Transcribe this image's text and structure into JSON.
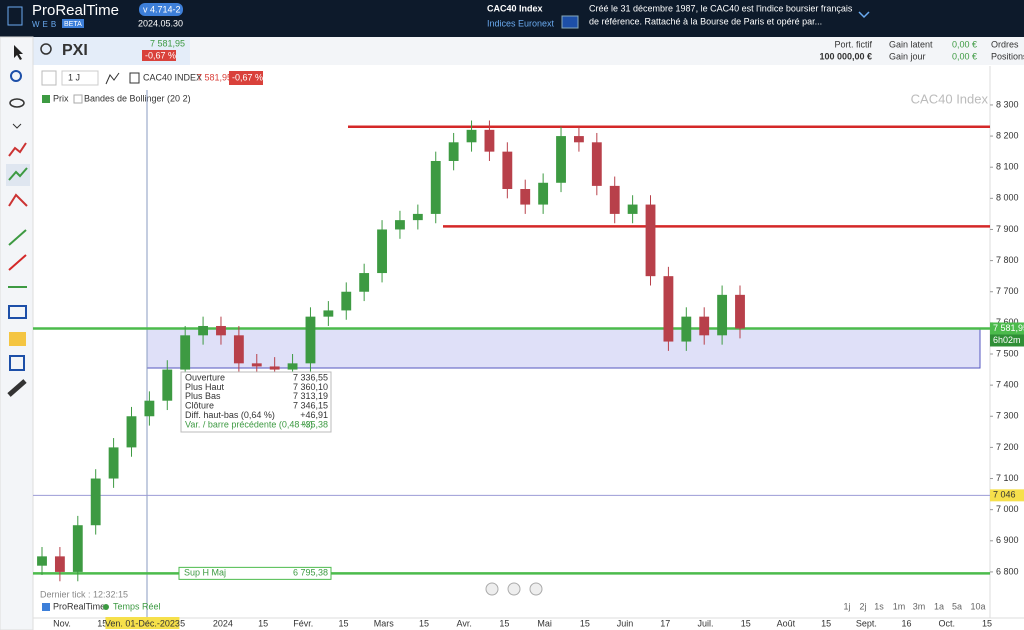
{
  "header": {
    "brand": "ProRealTime",
    "edition": "WEB",
    "beta": "BETA",
    "version": "v 4.714-2",
    "date": "2024.05.30",
    "instrument": "CAC40 Index",
    "market": "Indices Euronext",
    "description": [
      "Créé le 31 décembre 1987, le CAC40 est l'indice boursier français",
      "de référence. Rattaché à la Bourse de Paris et opéré par..."
    ]
  },
  "symbol_bar": {
    "symbol": "PXI",
    "price": "7 581,95",
    "change": "-0,67 %",
    "account": [
      {
        "label": "Port. fictif",
        "value": "100 000,00 €"
      }
    ],
    "gains": [
      {
        "label": "Gain latent",
        "value": "0,00 €"
      },
      {
        "label": "Gain jour",
        "value": "0,00 €"
      }
    ],
    "links": [
      "Ordres",
      "Positions"
    ]
  },
  "chart_header": {
    "period": "1 J",
    "name": "CAC40 INDEX",
    "price": "7 581,95",
    "change": "-0,67 %",
    "legend": [
      "Prix",
      "Bandes de Bollinger (20 2)"
    ]
  },
  "chart_data": {
    "type": "candlestick",
    "watermark": "CAC40 Index",
    "open": [
      6820,
      6850,
      6800,
      6950,
      7100,
      7200,
      7300,
      7350,
      7450,
      7560,
      7590,
      7560,
      7470,
      7460,
      7450,
      7470,
      7620,
      7640,
      7700,
      7760,
      7900,
      7930,
      7950,
      8120,
      8180,
      8220,
      8150,
      8030,
      7980,
      8050,
      8200,
      8180,
      8040,
      7950,
      7980,
      7750,
      7540,
      7620,
      7560,
      7690
    ],
    "high": [
      6880,
      6880,
      6980,
      7130,
      7230,
      7330,
      7380,
      7480,
      7590,
      7620,
      7620,
      7590,
      7500,
      7490,
      7500,
      7650,
      7670,
      7730,
      7790,
      7930,
      7960,
      7980,
      8150,
      8210,
      8250,
      8250,
      8180,
      8060,
      8080,
      8230,
      8230,
      8210,
      8070,
      8010,
      8010,
      7780,
      7650,
      7650,
      7720,
      7720
    ],
    "low": [
      6790,
      6770,
      6770,
      6920,
      7070,
      7170,
      7270,
      7320,
      7420,
      7530,
      7530,
      7440,
      7430,
      7420,
      7420,
      7440,
      7590,
      7610,
      7670,
      7730,
      7870,
      7900,
      7920,
      8090,
      8150,
      8120,
      8000,
      7950,
      7950,
      8020,
      8150,
      8010,
      7920,
      7920,
      7720,
      7510,
      7510,
      7530,
      7530,
      7550
    ],
    "close": [
      6850,
      6800,
      6950,
      7100,
      7200,
      7300,
      7350,
      7450,
      7560,
      7590,
      7560,
      7470,
      7460,
      7450,
      7470,
      7620,
      7640,
      7700,
      7760,
      7900,
      7930,
      7950,
      8120,
      8180,
      8220,
      8150,
      8030,
      7980,
      8050,
      8200,
      8180,
      8040,
      7950,
      7980,
      7750,
      7540,
      7620,
      7560,
      7690,
      7581.95
    ],
    "up_color": "#3d9a42",
    "down_color": "#b8404a",
    "ylim": [
      6652,
      8348
    ],
    "yticks": [
      {
        "value": 6800,
        "label": "6 800"
      },
      {
        "value": 6900,
        "label": "6 900"
      },
      {
        "value": 7000,
        "label": "7 000"
      },
      {
        "value": 7100,
        "label": "7 100"
      },
      {
        "value": 7200,
        "label": "7 200"
      },
      {
        "value": 7300,
        "label": "7 300"
      },
      {
        "value": 7400,
        "label": "7 400"
      },
      {
        "value": 7500,
        "label": "7 500"
      },
      {
        "value": 7600,
        "label": "7 600"
      },
      {
        "value": 7700,
        "label": "7 700"
      },
      {
        "value": 7800,
        "label": "7 800"
      },
      {
        "value": 7900,
        "label": "7 900"
      },
      {
        "value": 8000,
        "label": "8 000"
      },
      {
        "value": 8100,
        "label": "8 100"
      },
      {
        "value": 8200,
        "label": "8 200"
      },
      {
        "value": 8300,
        "label": "8 300"
      }
    ],
    "xtick_labels": [
      "Nov.",
      "15",
      "Ven. 01-Déc.-2023",
      "5",
      "2024",
      "15",
      "Févr.",
      "15",
      "Mars",
      "15",
      "Avr.",
      "15",
      "Mai",
      "15",
      "Juin",
      "17",
      "Juil.",
      "15",
      "Août",
      "15",
      "Sept.",
      "16",
      "Oct.",
      "15"
    ],
    "levels": [
      {
        "value": 8230,
        "color": "#d42828"
      },
      {
        "value": 7910,
        "color": "#d42828"
      },
      {
        "value": 7581.95,
        "color": "#4cbb4c",
        "label": "7 581,95",
        "timer": "6h02m"
      },
      {
        "value": 6795.38,
        "color": "#4cbb4c",
        "name": "Sup H Maj",
        "label": "6 795,38"
      },
      {
        "value": 7046,
        "color": "#9b9bd6",
        "label": "7 046"
      }
    ],
    "zone": {
      "top": 7581.95,
      "bottom": 7455,
      "color": "#d9dbf7"
    },
    "tooltip": [
      [
        "Ouverture",
        "7 336,55"
      ],
      [
        "Plus Haut",
        "7 360,10"
      ],
      [
        "Plus Bas",
        "7 313,19"
      ],
      [
        "Clôture",
        "7 346,15"
      ],
      [
        "Diff. haut-bas (0,64 %)",
        "+46,91"
      ],
      [
        "Var. / barre précédente (0,48 %)",
        "+35,38"
      ]
    ]
  },
  "footer": {
    "last_tick": "Dernier tick : 12:32:15",
    "brand": "ProRealTime",
    "feed": "Temps Réel",
    "timeframes": [
      "1j",
      "2j",
      "1s",
      "1m",
      "3m",
      "1a",
      "5a",
      "10a"
    ]
  }
}
